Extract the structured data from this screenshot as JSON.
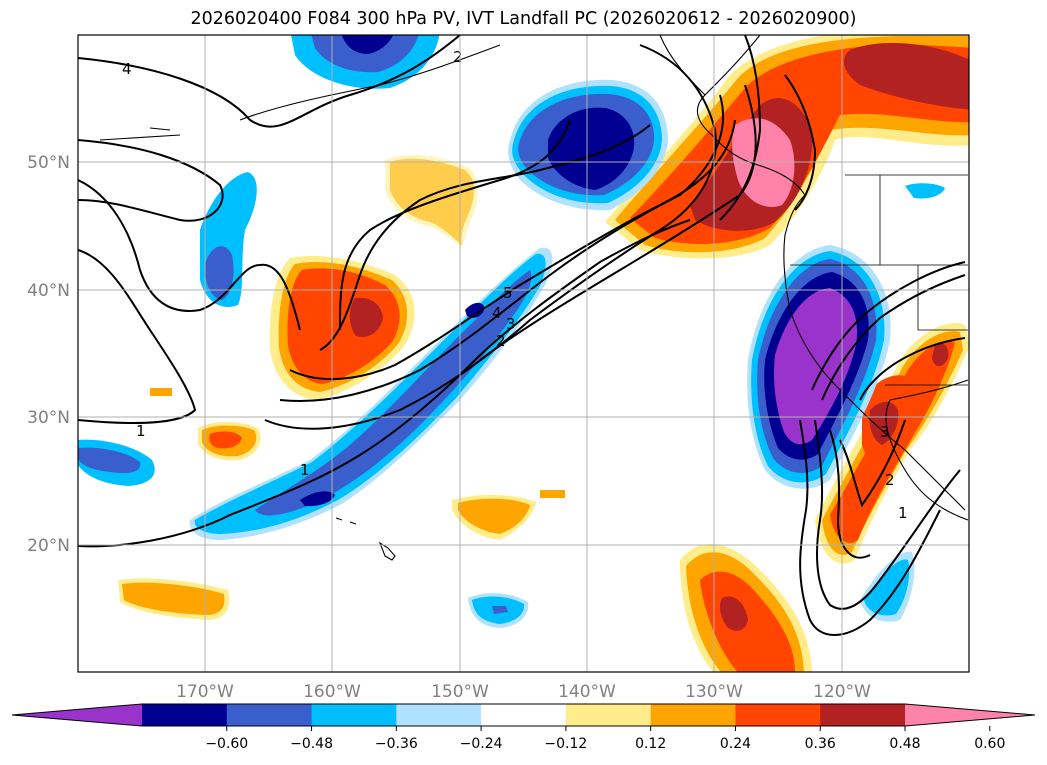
{
  "title": "2026020400 F084 300 hPa PV, IVT Landfall PC (2026020612 - 2026020900)",
  "map": {
    "projection": "equirectangular",
    "lon_range": [
      -180,
      -110
    ],
    "lat_range": [
      10,
      60
    ],
    "lat_labels": [
      "50°N",
      "40°N",
      "30°N",
      "20°N"
    ],
    "lon_labels": [
      "170°W",
      "160°W",
      "150°W",
      "140°W",
      "130°W",
      "120°W"
    ],
    "grid": true
  },
  "colorbar": {
    "extend": "both",
    "ticks": [
      "−0.60",
      "−0.48",
      "−0.36",
      "−0.24",
      "−0.12",
      "0.12",
      "0.24",
      "0.36",
      "0.48",
      "0.60"
    ],
    "colors": [
      "#9933cc",
      "#000090",
      "#3a5fcd",
      "#00bfff",
      "#b0e2ff",
      "#ffffff",
      "#ffec8b",
      "#ffa500",
      "#ff4500",
      "#b22222",
      "#ff82ab"
    ]
  },
  "contour_labels": [
    "4",
    "2",
    "1",
    "5",
    "4",
    "3",
    "2",
    "1",
    "1",
    "2",
    "3"
  ],
  "colors": {
    "grid": "#b0b0b0",
    "axis_label": "#808080"
  }
}
